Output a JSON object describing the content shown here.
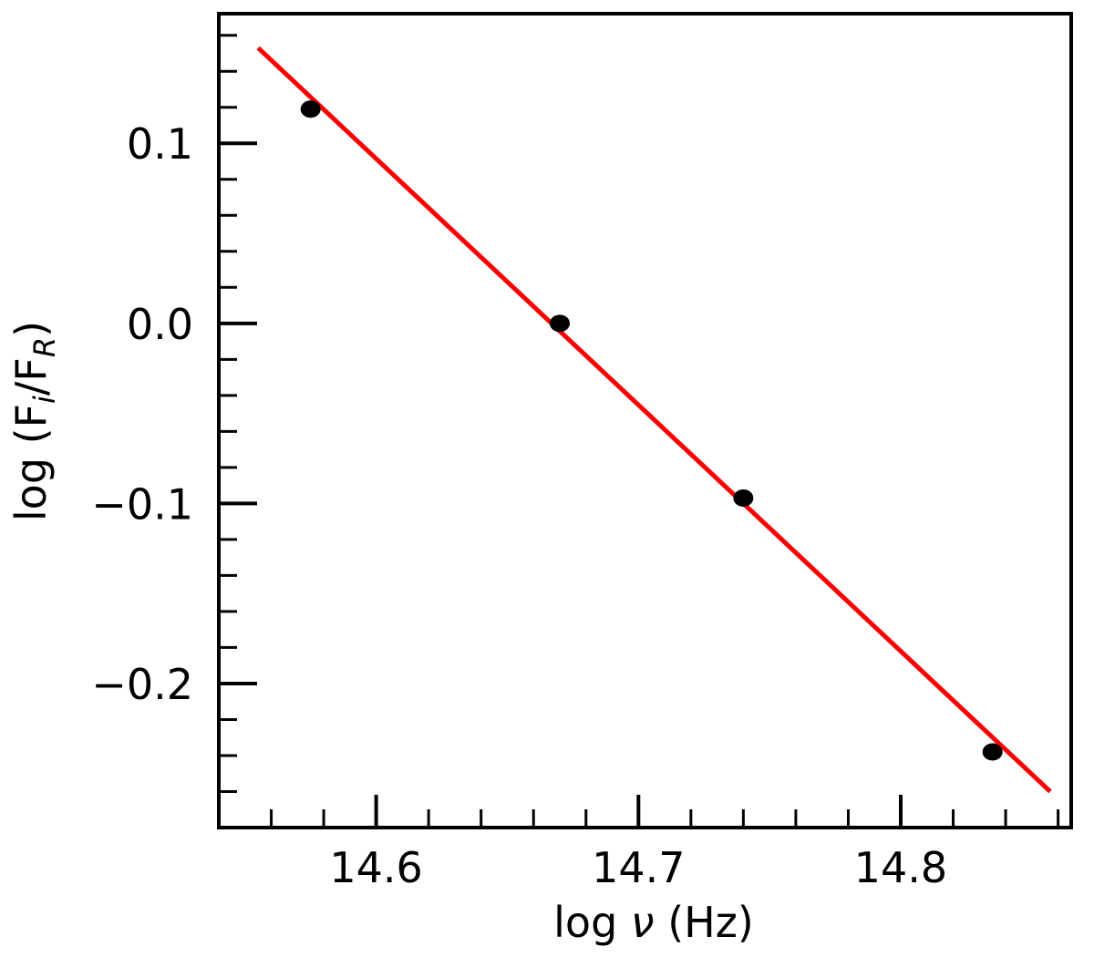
{
  "chart_data": {
    "type": "scatter",
    "xlabel_prefix": "log ",
    "xlabel_symbol": "ν",
    "xlabel_suffix": " (Hz)",
    "ylabel_prefix": "log (F",
    "ylabel_sub_i": "i",
    "ylabel_mid": "/F",
    "ylabel_sub_r": "R",
    "ylabel_suffix": ")",
    "xlim": [
      14.54,
      14.865
    ],
    "ylim": [
      -0.28,
      0.172
    ],
    "x_major_ticks": [
      14.6,
      14.7,
      14.8
    ],
    "x_tick_labels": [
      "14.6",
      "14.7",
      "14.8"
    ],
    "x_minor_step": 0.02,
    "y_major_ticks": [
      0.1,
      0.0,
      -0.1,
      -0.2
    ],
    "y_tick_labels": [
      "0.1",
      "0.0",
      "−0.1",
      "−0.2"
    ],
    "y_minor_step": 0.02,
    "grid": false,
    "series": [
      {
        "kind": "points",
        "color": "#000000",
        "points": [
          {
            "x": 14.575,
            "y": 0.119
          },
          {
            "x": 14.67,
            "y": 0.0
          },
          {
            "x": 14.74,
            "y": -0.097
          },
          {
            "x": 14.835,
            "y": -0.238
          }
        ]
      },
      {
        "kind": "fit-line",
        "color": "#ff0000",
        "x": [
          14.555,
          14.857
        ],
        "y": [
          0.153,
          -0.26
        ]
      }
    ]
  }
}
